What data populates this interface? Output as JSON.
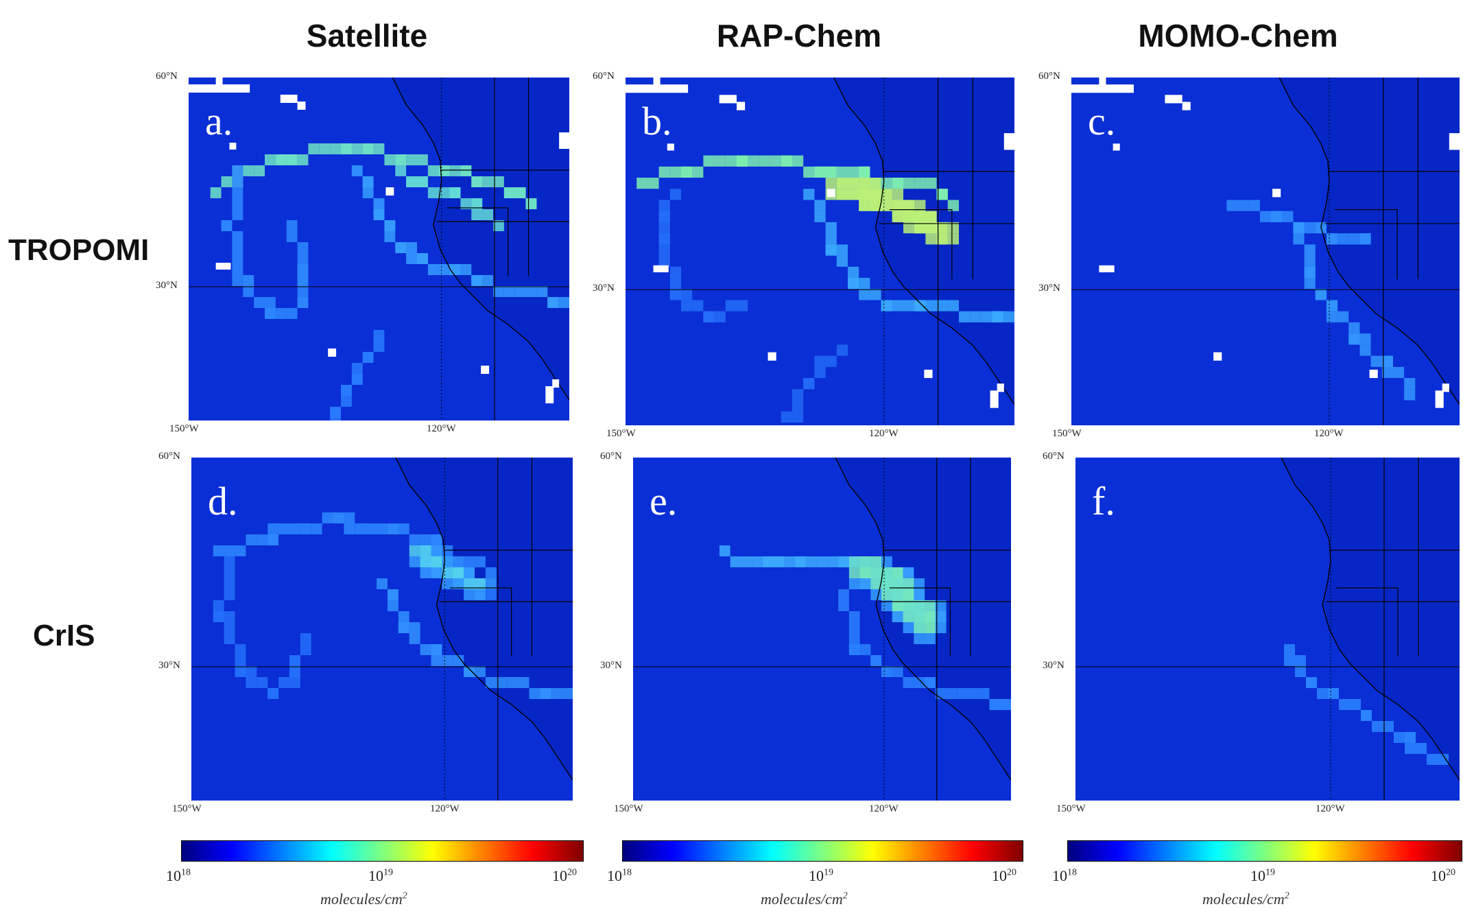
{
  "columns": [
    {
      "title": "Satellite"
    },
    {
      "title": "RAP-Chem"
    },
    {
      "title": "MOMO-Chem"
    }
  ],
  "rows": [
    {
      "title": "TROPOMI"
    },
    {
      "title": "CrIS"
    }
  ],
  "panels": [
    {
      "letter": "a.",
      "lat_top": "60°N",
      "lat_mid": "30°N",
      "lon_left": "150°W",
      "lon_mid": "120°W",
      "plume": "sat_tropomi",
      "has_gaps": true
    },
    {
      "letter": "b.",
      "lat_top": "60°N",
      "lat_mid": "30°N",
      "lon_left": "150°W",
      "lon_mid": "120°W",
      "plume": "rap_tropomi",
      "has_gaps": true
    },
    {
      "letter": "c.",
      "lat_top": "60°N",
      "lat_mid": "30°N",
      "lon_left": "150°W",
      "lon_mid": "120°W",
      "plume": "momo_tropomi",
      "has_gaps": true
    },
    {
      "letter": "d.",
      "lat_top": "60°N",
      "lat_mid": "30°N",
      "lon_left": "150°W",
      "lon_mid": "120°W",
      "plume": "sat_cris",
      "has_gaps": false
    },
    {
      "letter": "e.",
      "lat_top": "60°N",
      "lat_mid": "30°N",
      "lon_left": "150°W",
      "lon_mid": "120°W",
      "plume": "rap_cris",
      "has_gaps": false
    },
    {
      "letter": "f.",
      "lat_top": "60°N",
      "lat_mid": "30°N",
      "lon_left": "150°W",
      "lon_mid": "120°W",
      "plume": "momo_cris",
      "has_gaps": false
    }
  ],
  "colorbar": {
    "tick_min_base": "10",
    "tick_min_exp": "18",
    "tick_mid_base": "10",
    "tick_mid_exp": "19",
    "tick_max_base": "10",
    "tick_max_exp": "20",
    "unit": "molecules/cm",
    "unit_exp": "2",
    "colormap": [
      "#00007f",
      "#0000ff",
      "#007fff",
      "#00ffff",
      "#7fff7f",
      "#ffff00",
      "#ff7f00",
      "#ff0000",
      "#7f0000"
    ],
    "scale": "log"
  },
  "colors": {
    "background": "#0a2fd6",
    "land": "#0627c4",
    "gap": "#ffffff",
    "borders": "#000000"
  }
}
